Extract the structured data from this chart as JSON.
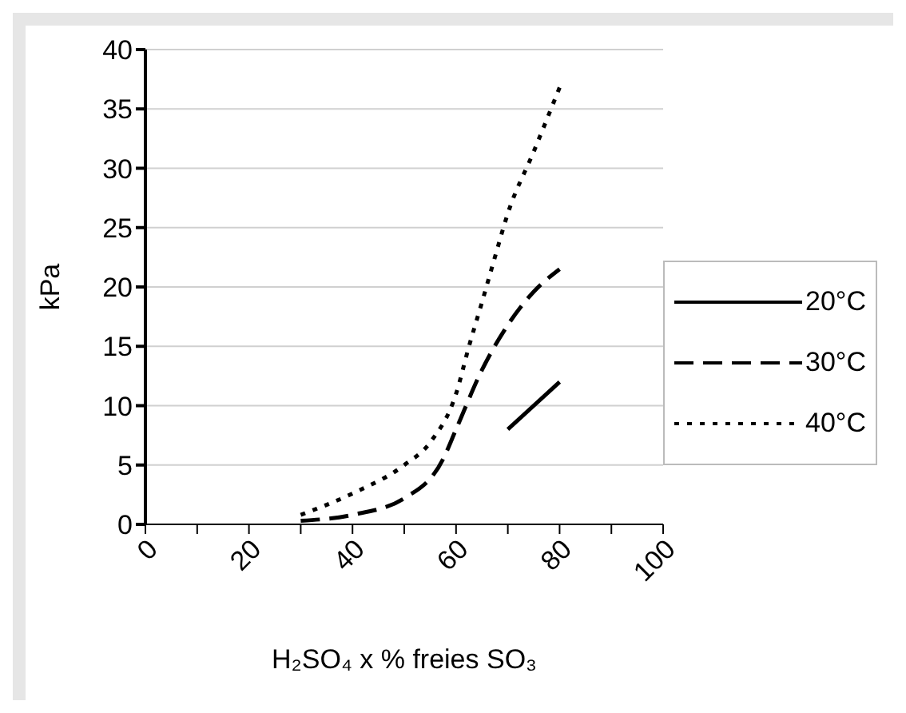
{
  "chart_data": {
    "type": "line",
    "xlabel": "H₂SO₄ x % freies SO₃",
    "ylabel": "kPa",
    "xlim": [
      0,
      100
    ],
    "xticks": [
      0,
      {
        "value": 10,
        "label": null
      },
      20,
      {
        "value": 30,
        "label": null
      },
      40,
      {
        "value": 50,
        "label": null
      },
      60,
      {
        "value": 70,
        "label": null
      },
      80,
      {
        "value": 90,
        "label": null
      },
      100
    ],
    "ylim": [
      0,
      40
    ],
    "yticks": [
      0,
      5,
      10,
      15,
      20,
      25,
      30,
      35,
      40
    ],
    "grid": "y",
    "legend": "right",
    "marker": "none",
    "series": [
      {
        "name": "20°C",
        "color": "#000000",
        "line_style": "solid",
        "x": [
          70,
          80
        ],
        "values": [
          8,
          12
        ]
      },
      {
        "name": "30°C",
        "color": "#000000",
        "line_style": "dashed",
        "x": [
          30,
          40,
          50,
          57.5,
          60,
          65,
          70,
          75,
          80
        ],
        "values": [
          0.3,
          0.8,
          2.2,
          5.5,
          8,
          13,
          16.8,
          19.6,
          21.5
        ]
      },
      {
        "name": "40°C",
        "color": "#000000",
        "line_style": "dotted",
        "x": [
          30,
          40,
          50,
          55,
          60,
          62.5,
          65,
          67.5,
          70,
          75,
          80
        ],
        "values": [
          0.8,
          2.6,
          5,
          6.9,
          11,
          15,
          18.7,
          22.5,
          26.2,
          31.4,
          36.8
        ]
      }
    ]
  }
}
